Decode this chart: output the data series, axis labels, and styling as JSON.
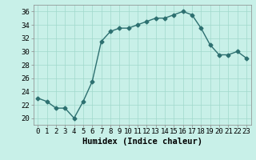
{
  "x": [
    0,
    1,
    2,
    3,
    4,
    5,
    6,
    7,
    8,
    9,
    10,
    11,
    12,
    13,
    14,
    15,
    16,
    17,
    18,
    19,
    20,
    21,
    22,
    23
  ],
  "y": [
    23.0,
    22.5,
    21.5,
    21.5,
    20.0,
    22.5,
    25.5,
    31.5,
    33.0,
    33.5,
    33.5,
    34.0,
    34.5,
    35.0,
    35.0,
    35.5,
    36.0,
    35.5,
    33.5,
    31.0,
    29.5,
    29.5,
    30.0,
    29.0
  ],
  "line_color": "#2d7070",
  "marker": "D",
  "marker_size": 2.5,
  "bg_color": "#c8f0e8",
  "grid_color": "#a0d8cc",
  "xlabel": "Humidex (Indice chaleur)",
  "xlim": [
    -0.5,
    23.5
  ],
  "ylim": [
    19,
    37
  ],
  "yticks": [
    20,
    22,
    24,
    26,
    28,
    30,
    32,
    34,
    36
  ],
  "xticks": [
    0,
    1,
    2,
    3,
    4,
    5,
    6,
    7,
    8,
    9,
    10,
    11,
    12,
    13,
    14,
    15,
    16,
    17,
    18,
    19,
    20,
    21,
    22,
    23
  ],
  "xlabel_fontsize": 7.5,
  "tick_fontsize": 6.5,
  "linewidth": 1.0
}
